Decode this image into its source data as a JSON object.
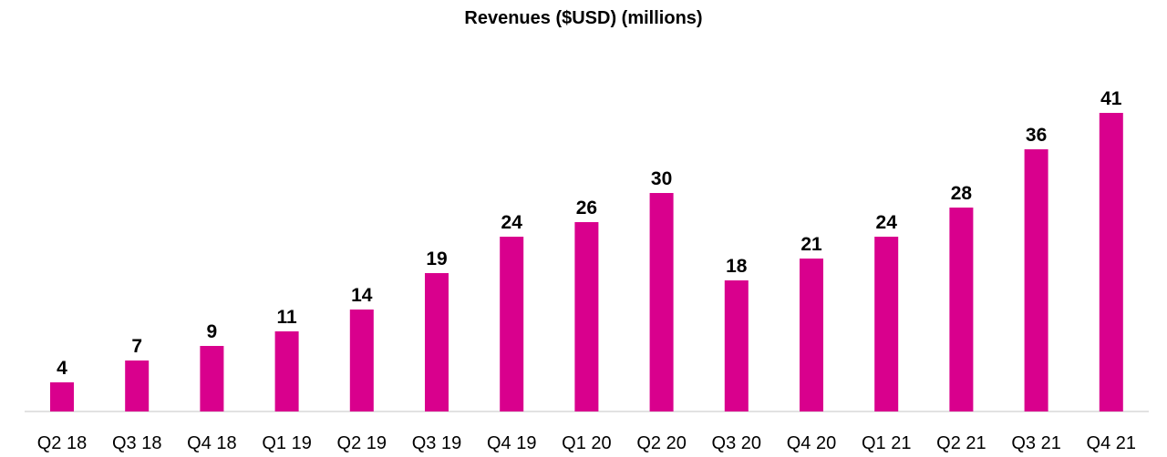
{
  "chart_data": {
    "type": "bar",
    "title": "Revenues ($USD) (millions)",
    "xlabel": "",
    "ylabel": "",
    "categories": [
      "Q2 18",
      "Q3 18",
      "Q4 18",
      "Q1 19",
      "Q2 19",
      "Q3 19",
      "Q4 19",
      "Q1 20",
      "Q2 20",
      "Q3 20",
      "Q4 20",
      "Q1 21",
      "Q2 21",
      "Q3 21",
      "Q4 21"
    ],
    "values": [
      4,
      7,
      9,
      11,
      14,
      19,
      24,
      26,
      30,
      18,
      21,
      24,
      28,
      36,
      41
    ],
    "ylim": [
      0,
      41
    ],
    "grid": false,
    "legend": "none",
    "bar_color": "#D9008D",
    "axis_color": "#D9D9D9"
  }
}
